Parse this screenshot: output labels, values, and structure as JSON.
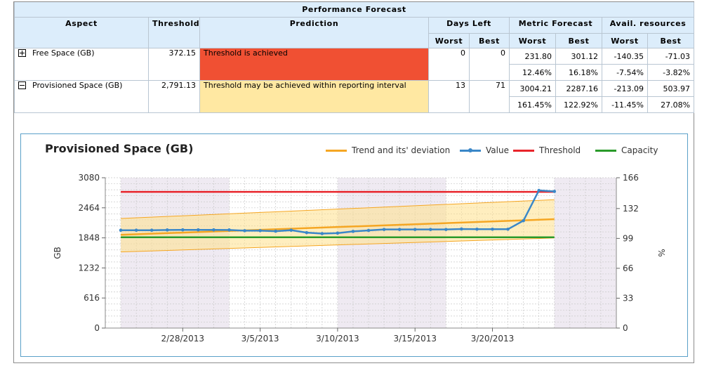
{
  "table": {
    "title": "Performance Forecast",
    "headers": {
      "aspect": "Aspect",
      "threshold": "Threshold",
      "prediction": "Prediction",
      "days_left": "Days Left",
      "metric_forecast": "Metric Forecast",
      "avail_resources": "Avail. resources",
      "worst": "Worst",
      "best": "Best"
    },
    "rows": [
      {
        "aspect": "Free Space (GB)",
        "expander": "plus",
        "threshold": "372.15",
        "prediction": "Threshold is achieved",
        "prediction_color": "#f05033",
        "days_worst": "0",
        "days_best": "0",
        "metric_worst": "231.80",
        "metric_best": "301.12",
        "metric_worst_pct": "12.46%",
        "metric_best_pct": "16.18%",
        "avail_worst": "-140.35",
        "avail_best": "-71.03",
        "avail_worst_pct": "-7.54%",
        "avail_best_pct": "-3.82%"
      },
      {
        "aspect": "Provisioned Space (GB)",
        "expander": "minus",
        "threshold": "2,791.13",
        "prediction": "Threshold may be achieved within reporting interval",
        "prediction_color": "#ffe8a2",
        "days_worst": "13",
        "days_best": "71",
        "metric_worst": "3004.21",
        "metric_best": "2287.16",
        "metric_worst_pct": "161.45%",
        "metric_best_pct": "122.92%",
        "avail_worst": "-213.09",
        "avail_best": "503.97",
        "avail_worst_pct": "-11.45%",
        "avail_best_pct": "27.08%"
      }
    ]
  },
  "chart_data": {
    "type": "line",
    "title": "Provisioned Space (GB)",
    "ylabel": "GB",
    "y2label": "%",
    "ylim": [
      0,
      3080
    ],
    "y_ticks": [
      0,
      616,
      1232,
      1848,
      2464,
      3080
    ],
    "y2lim": [
      0,
      166
    ],
    "y2_ticks": [
      0,
      33,
      66,
      99,
      132,
      166
    ],
    "x_tick_labels": [
      "2/28/2013",
      "3/5/2013",
      "3/10/2013",
      "3/15/2013",
      "3/20/2013"
    ],
    "x_tick_dates": [
      "2013-02-28",
      "2013-03-05",
      "2013-03-10",
      "2013-03-15",
      "2013-03-20"
    ],
    "xlim": [
      "2013-02-23",
      "2013-03-28"
    ],
    "grid": true,
    "legend_position": "top-right",
    "legend": [
      {
        "name": "Trend and its' deviation",
        "color": "#f5a623"
      },
      {
        "name": "Value",
        "color": "#3a87c8"
      },
      {
        "name": "Threshold",
        "color": "#e8242b"
      },
      {
        "name": "Capacity",
        "color": "#2a9a2a"
      }
    ],
    "series": [
      {
        "name": "Value",
        "color": "#3a87c8",
        "dates": [
          "2013-02-24",
          "2013-02-25",
          "2013-02-26",
          "2013-02-27",
          "2013-02-28",
          "2013-03-01",
          "2013-03-02",
          "2013-03-03",
          "2013-03-04",
          "2013-03-05",
          "2013-03-06",
          "2013-03-07",
          "2013-03-08",
          "2013-03-09",
          "2013-03-10",
          "2013-03-11",
          "2013-03-12",
          "2013-03-13",
          "2013-03-14",
          "2013-03-15",
          "2013-03-16",
          "2013-03-17",
          "2013-03-18",
          "2013-03-19",
          "2013-03-20",
          "2013-03-21",
          "2013-03-22",
          "2013-03-23",
          "2013-03-24"
        ],
        "values": [
          2005,
          2005,
          2005,
          2010,
          2012,
          2012,
          2012,
          2010,
          1995,
          1995,
          1985,
          2005,
          1955,
          1935,
          1945,
          1980,
          2000,
          2020,
          2020,
          2020,
          2020,
          2020,
          2030,
          2025,
          2025,
          2025,
          2200,
          2820,
          2800
        ]
      },
      {
        "name": "Threshold",
        "color": "#e8242b",
        "dates": [
          "2013-02-24",
          "2013-03-24"
        ],
        "values": [
          2791.13,
          2791.13
        ]
      },
      {
        "name": "Capacity",
        "color": "#2a9a2a",
        "dates": [
          "2013-02-24",
          "2013-03-24"
        ],
        "values": [
          1861,
          1861
        ]
      },
      {
        "name": "Trend",
        "color": "#f5a623",
        "dates": [
          "2013-02-24",
          "2013-03-24"
        ],
        "values": [
          1910,
          2230
        ]
      },
      {
        "name": "Deviation upper",
        "color": "#f5a623",
        "dates": [
          "2013-02-24",
          "2013-03-24"
        ],
        "values": [
          2245,
          2630
        ]
      },
      {
        "name": "Deviation lower",
        "color": "#f5a623",
        "dates": [
          "2013-02-24",
          "2013-03-24"
        ],
        "values": [
          1560,
          1845
        ]
      }
    ]
  }
}
